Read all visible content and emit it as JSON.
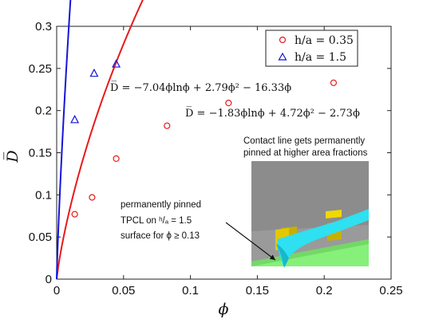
{
  "chart_data": {
    "type": "scatter",
    "xlabel": "ϕ",
    "ylabel": "D̅",
    "xlim": [
      0,
      0.25
    ],
    "ylim": [
      0,
      0.3
    ],
    "xticks": [
      0,
      0.05,
      0.1,
      0.15,
      0.2,
      0.25
    ],
    "xtick_labels": [
      "0",
      "0.05",
      "0.1",
      "0.15",
      "0.2",
      "0.25"
    ],
    "yticks": [
      0,
      0.05,
      0.1,
      0.15,
      0.2,
      0.25,
      0.3
    ],
    "ytick_labels": [
      "0",
      "0.05",
      "0.1",
      "0.15",
      "0.2",
      "0.25",
      "0.3"
    ],
    "legend_position": "top-right",
    "series": [
      {
        "name": "h/a = 0.35",
        "marker": "circle",
        "color": "#e8191a",
        "x": [
          0.0135,
          0.0265,
          0.0445,
          0.0825,
          0.1285,
          0.207
        ],
        "y": [
          0.077,
          0.097,
          0.143,
          0.182,
          0.209,
          0.233
        ],
        "fit": "D̅ = −1.83ϕlnϕ + 4.72ϕ² − 2.73ϕ",
        "fit_coeffs": {
          "phi_ln_phi": -1.83,
          "phi_sq": 4.72,
          "phi": -2.73
        }
      },
      {
        "name": "h/a = 1.5",
        "marker": "triangle",
        "color": "#1515d8",
        "x": [
          0.0135,
          0.028,
          0.0445
        ],
        "y": [
          0.189,
          0.244,
          0.255
        ],
        "fit": "D̅ = −7.04ϕlnϕ + 2.79ϕ² − 16.33ϕ",
        "fit_coeffs": {
          "phi_ln_phi": -7.04,
          "phi_sq": 2.79,
          "phi": -16.33
        }
      }
    ],
    "annotations": {
      "inset_title_line1": "Contact line gets permanently",
      "inset_title_line2": "pinned at higher area fractions",
      "pinned_line1": "permanently pinned",
      "pinned_line2": "TPCL on ʰ/ₐ = 1.5",
      "pinned_line3": "surface for ϕ ≥ 0.13"
    }
  }
}
